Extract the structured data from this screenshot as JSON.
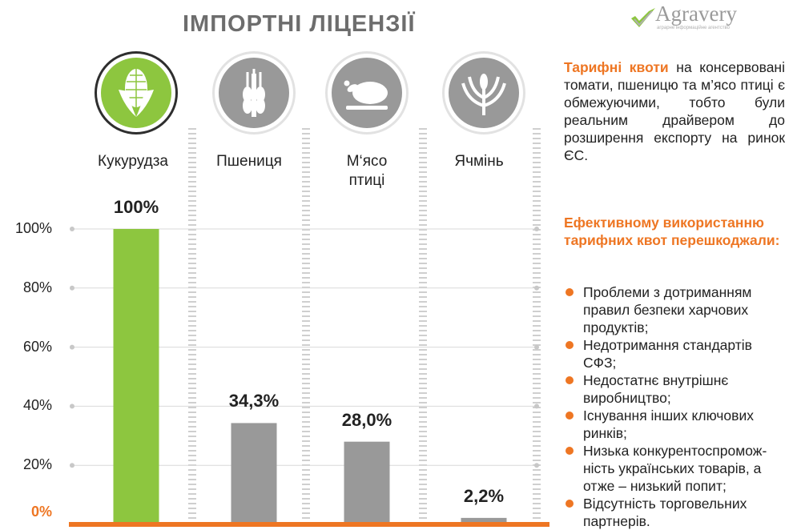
{
  "title": "ІМПОРТНІ ЛІЦЕНЗІЇ",
  "logo": {
    "text": "Agravery",
    "subtitle": "аграрне інформаційне агентство"
  },
  "colors": {
    "accent": "#ee7623",
    "highlight_bar": "#8dc63f",
    "bar": "#999999",
    "icon_gray": "#999999"
  },
  "chart_data": {
    "type": "bar",
    "categories": [
      "Кукурудза",
      "Пшениця",
      "М‘ясо птиці",
      "Ячмінь"
    ],
    "category_lines": [
      [
        "Кукурудза"
      ],
      [
        "Пшениця"
      ],
      [
        "М‘ясо",
        "птиці"
      ],
      [
        "Ячмінь"
      ]
    ],
    "icons": [
      "corn-icon",
      "wheat-icon",
      "chicken-icon",
      "barley-icon"
    ],
    "values": [
      100,
      34.3,
      28.0,
      2.2
    ],
    "value_labels": [
      "100%",
      "34,3%",
      "28,0%",
      "2,2%"
    ],
    "ylim": [
      0,
      100
    ],
    "yticks": [
      0,
      20,
      40,
      60,
      80,
      100
    ],
    "ytick_labels": [
      "0%",
      "20%",
      "40%",
      "60%",
      "80%",
      "100%"
    ],
    "highlight_index": 0
  },
  "side": {
    "p1_bold": "Тарифні квоти",
    "p1_text": " на консервовані томати, пшеницю та м’ясо птиці є обмежуючими, тобто були реальним драйвером до розширення експорту на ринок ЄС.",
    "heading": "Ефективному використанню тарифних квот перешкоджали:",
    "bullets": [
      "Проблеми з дотриманням правил безпеки харчових продуктів;",
      "Недотримання стандартів СФЗ;",
      "Недостатнє внутрішнє виробництво;",
      "Існування інших ключових ринків;",
      "Низька конкурентоспромож-ність українських товарів, а отже – низький попит;",
      "Відсутність торговельних партнерів."
    ]
  }
}
